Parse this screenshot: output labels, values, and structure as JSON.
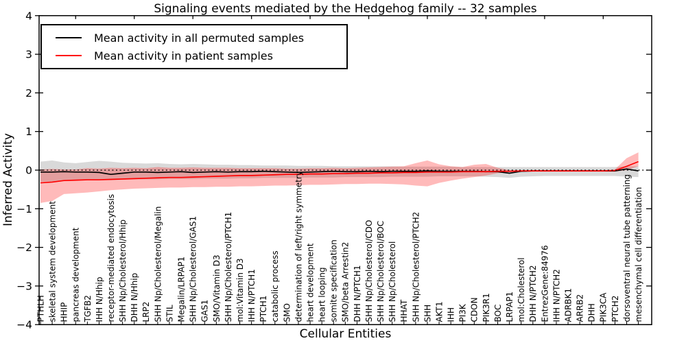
{
  "chart_data": {
    "type": "line",
    "title": "Signaling events mediated by the Hedgehog family -- 32 samples",
    "xlabel": "Cellular Entities",
    "ylabel": "Inferred Activity",
    "ylim": [
      -4,
      4
    ],
    "yticks": [
      4,
      3,
      2,
      1,
      0,
      -1,
      -2,
      -3,
      -4
    ],
    "grid": false,
    "legend_position": "upper left",
    "reference_line": {
      "y": 0,
      "style": "dotted",
      "color": "#000000"
    },
    "categories": [
      "PTHLH",
      "skeletal system development",
      "HHIP",
      "pancreas development",
      "TGFB2",
      "IHH N/Hhip",
      "receptor-mediated endocytosis",
      "SHH Np/Cholesterol/Hhip",
      "DHH N/Hhip",
      "LRP2",
      "SHH Np/Cholesterol/Megalin",
      "STIL",
      "Megalin/LRPAP1",
      "SHH Np/Cholesterol/GAS1",
      "GAS1",
      "SMO/Vitamin D3",
      "SHH Np/Cholesterol/PTCH1",
      "mol:Vitamin D3",
      "IHH N/PTCH1",
      "PTCH1",
      "catabolic process",
      "SMO",
      "determination of left/right symmetry",
      "heart development",
      "heart looping",
      "somite specification",
      "SMO/beta Arrestin2",
      "DHH N/PTCH1",
      "SHH Np/Cholesterol/CDO",
      "SHH Np/Cholesterol/BOC",
      "SHH Np/Cholesterol",
      "HHAT",
      "SHH Np/Cholesterol/PTCH2",
      "SHH",
      "AKT1",
      "IHH",
      "PI3K",
      "CDON",
      "PIK3R1",
      "BOC",
      "LRPAP1",
      "mol:Cholesterol",
      "DHH N/PTCH2",
      "EntrezGene:84976",
      "IHH N/PTCH2",
      "ADRBK1",
      "ARRB2",
      "DHH",
      "PIK3CA",
      "PTCH2",
      "dorsoventral neural tube patterning",
      "mesenchymal cell differentiation"
    ],
    "series": [
      {
        "name": "Mean activity in all permuted samples",
        "color": "#000000",
        "values": [
          -0.05,
          -0.05,
          -0.04,
          -0.05,
          -0.05,
          -0.06,
          -0.11,
          -0.08,
          -0.05,
          -0.05,
          -0.06,
          -0.05,
          -0.04,
          -0.06,
          -0.05,
          -0.04,
          -0.05,
          -0.04,
          -0.04,
          -0.03,
          -0.04,
          -0.05,
          -0.06,
          -0.05,
          -0.04,
          -0.03,
          -0.04,
          -0.04,
          -0.03,
          -0.04,
          -0.03,
          -0.03,
          -0.03,
          -0.02,
          -0.03,
          -0.03,
          -0.03,
          -0.03,
          -0.04,
          -0.04,
          -0.08,
          -0.03,
          -0.02,
          -0.02,
          -0.02,
          -0.02,
          -0.02,
          -0.02,
          -0.02,
          -0.02,
          0.03,
          -0.02
        ]
      },
      {
        "name": "Mean activity in patient samples",
        "color": "#ff0000",
        "values": [
          -0.33,
          -0.31,
          -0.27,
          -0.26,
          -0.25,
          -0.25,
          -0.24,
          -0.23,
          -0.22,
          -0.21,
          -0.2,
          -0.19,
          -0.19,
          -0.18,
          -0.17,
          -0.16,
          -0.15,
          -0.14,
          -0.14,
          -0.13,
          -0.12,
          -0.11,
          -0.11,
          -0.1,
          -0.1,
          -0.09,
          -0.09,
          -0.08,
          -0.08,
          -0.07,
          -0.07,
          -0.06,
          -0.06,
          -0.05,
          -0.05,
          -0.05,
          -0.04,
          -0.04,
          -0.04,
          -0.03,
          -0.03,
          -0.02,
          -0.02,
          -0.02,
          -0.02,
          -0.02,
          -0.02,
          -0.02,
          -0.02,
          -0.01,
          0.1,
          0.22
        ]
      }
    ],
    "bands": [
      {
        "name": "permuted-samples-range",
        "color": "rgba(0,0,0,0.15)",
        "upper": [
          0.22,
          0.25,
          0.2,
          0.18,
          0.21,
          0.24,
          0.22,
          0.19,
          0.18,
          0.17,
          0.18,
          0.16,
          0.15,
          0.16,
          0.15,
          0.14,
          0.14,
          0.13,
          0.13,
          0.12,
          0.12,
          0.12,
          0.11,
          0.11,
          0.11,
          0.1,
          0.1,
          0.1,
          0.1,
          0.1,
          0.1,
          0.09,
          0.09,
          0.09,
          0.09,
          0.09,
          0.08,
          0.08,
          0.08,
          0.08,
          0.08,
          0.08,
          0.08,
          0.08,
          0.08,
          0.08,
          0.08,
          0.08,
          0.08,
          0.08,
          0.1,
          0.1
        ],
        "lower": [
          -0.3,
          -0.3,
          -0.27,
          -0.26,
          -0.26,
          -0.25,
          -0.26,
          -0.25,
          -0.24,
          -0.24,
          -0.24,
          -0.23,
          -0.23,
          -0.23,
          -0.22,
          -0.22,
          -0.22,
          -0.21,
          -0.21,
          -0.2,
          -0.2,
          -0.2,
          -0.2,
          -0.19,
          -0.19,
          -0.19,
          -0.18,
          -0.18,
          -0.18,
          -0.18,
          -0.17,
          -0.17,
          -0.17,
          -0.17,
          -0.16,
          -0.16,
          -0.16,
          -0.16,
          -0.17,
          -0.18,
          -0.2,
          -0.17,
          -0.16,
          -0.15,
          -0.15,
          -0.15,
          -0.15,
          -0.15,
          -0.15,
          -0.15,
          -0.17,
          -0.18
        ]
      },
      {
        "name": "patient-samples-range",
        "color": "rgba(255,0,0,0.27)",
        "upper": [
          0.02,
          0.03,
          0.02,
          0.02,
          0.05,
          0.04,
          0.06,
          0.05,
          0.06,
          0.05,
          0.08,
          0.06,
          0.06,
          0.07,
          0.06,
          0.06,
          0.06,
          0.05,
          0.05,
          0.05,
          0.05,
          0.04,
          0.04,
          0.05,
          0.05,
          0.06,
          0.05,
          0.06,
          0.07,
          0.08,
          0.09,
          0.1,
          0.18,
          0.25,
          0.15,
          0.1,
          0.08,
          0.14,
          0.16,
          0.06,
          0.0,
          -0.01,
          -0.01,
          -0.01,
          -0.01,
          -0.01,
          -0.01,
          -0.01,
          -0.01,
          0.02,
          0.31,
          0.46
        ],
        "lower": [
          -0.85,
          -0.8,
          -0.62,
          -0.6,
          -0.58,
          -0.55,
          -0.52,
          -0.5,
          -0.48,
          -0.47,
          -0.46,
          -0.45,
          -0.45,
          -0.44,
          -0.44,
          -0.43,
          -0.43,
          -0.42,
          -0.42,
          -0.41,
          -0.4,
          -0.4,
          -0.39,
          -0.38,
          -0.38,
          -0.37,
          -0.36,
          -0.36,
          -0.35,
          -0.35,
          -0.36,
          -0.37,
          -0.4,
          -0.42,
          -0.33,
          -0.27,
          -0.22,
          -0.18,
          -0.14,
          -0.08,
          -0.05,
          -0.04,
          -0.04,
          -0.04,
          -0.04,
          -0.04,
          -0.04,
          -0.04,
          -0.04,
          -0.04,
          0.0,
          0.1
        ]
      }
    ]
  }
}
